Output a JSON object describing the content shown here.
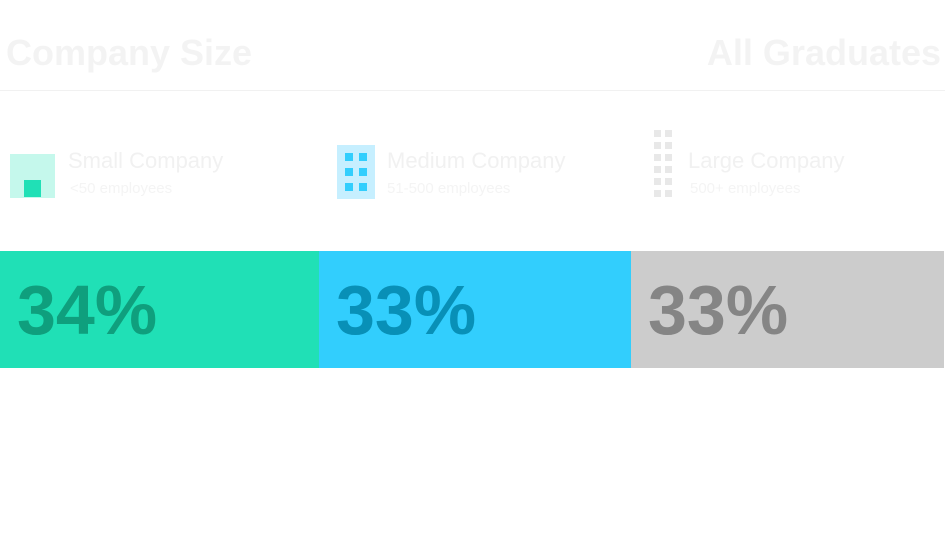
{
  "header": {
    "title": "Company Size",
    "filter_label": "All Graduates"
  },
  "chart_data": {
    "type": "bar",
    "subtype": "100% stacked horizontal bar",
    "categories": [
      "Small Company",
      "Medium Company",
      "Large Company"
    ],
    "ranges": [
      "<50 employees",
      "51-500 employees",
      "500+ employees"
    ],
    "values": [
      34,
      33,
      33
    ],
    "labels": [
      "34%",
      "33%",
      "33%"
    ],
    "unit": "%",
    "colors": [
      "#20e0b6",
      "#32cefd",
      "#cccccc"
    ],
    "label_colors": [
      "#0f9f7d",
      "#0890b7",
      "#858585"
    ],
    "icons": [
      "small-building-icon",
      "medium-building-icon",
      "large-building-icon"
    ],
    "legend_position": "top",
    "grid": false
  }
}
